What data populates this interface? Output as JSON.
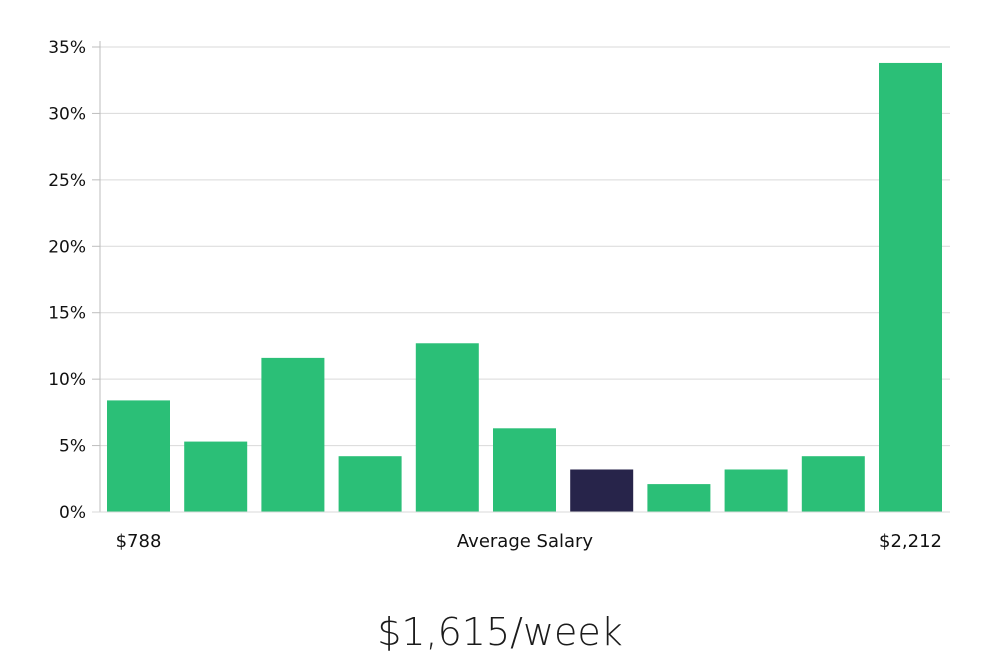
{
  "chart_data": {
    "type": "bar",
    "values": [
      8.4,
      5.3,
      11.6,
      4.2,
      12.7,
      6.3,
      3.2,
      2.1,
      3.2,
      4.2,
      33.8
    ],
    "highlight_index": 6,
    "ylim": [
      0,
      35
    ],
    "yticks": [
      "0%",
      "5%",
      "10%",
      "15%",
      "20%",
      "25%",
      "30%",
      "35%"
    ],
    "ytick_values": [
      0,
      5,
      10,
      15,
      20,
      25,
      30,
      35
    ],
    "grid": true,
    "x_labels": {
      "left": "$788",
      "center": "Average Salary",
      "right": "$2,212"
    }
  },
  "colors": {
    "bar": "#2bbf77",
    "highlight": "#27244a",
    "grid": "#d9d9d9",
    "axis": "#bdbdbd"
  },
  "headline": "$1,615/week"
}
